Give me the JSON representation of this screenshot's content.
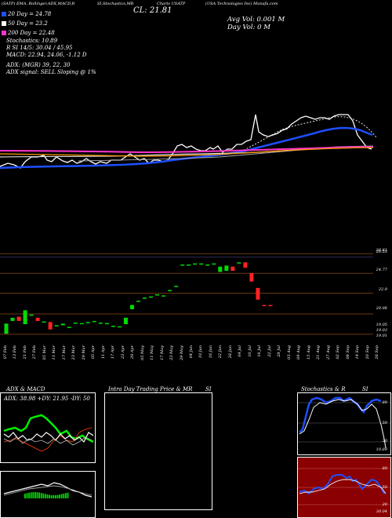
{
  "header": {
    "top_left": "(SATP) EMA, Bollinger,ADX,MACD,R",
    "top_mid": "SI,Stochastics,MR",
    "close_value": "CL: 21.81",
    "top_chart": "Charts USATP",
    "company": "(USA Technologies Inc) Munafa.com",
    "avg_vol": "Avg Vol: 0.001 M",
    "day_vol": "Day Vol: 0    M"
  },
  "legend": [
    {
      "label": "20 Day = 24.78",
      "color": "#1f4fff"
    },
    {
      "label": "50 Day = 23.2",
      "color": "#ffffff"
    },
    {
      "label": "200 Day = 22.48",
      "color": "#ff33cc"
    }
  ],
  "indicators": {
    "stochastics": "Stochastics: 10.89",
    "rsi": "R        SI 14/5: 30.04  / 45.95",
    "macd": "MACD: 22.94, 24.06, -1.12  D",
    "adx": "ADX:                        (MGR) 39, 22, 30",
    "signal": "ADX  signal: SELL  Sloping @ 1%"
  },
  "price_axis": [
    "26.61",
    "26.53",
    "24.77",
    "22.9",
    "20.96",
    "19.05",
    "19.03",
    "19.01"
  ],
  "date_labels": [
    "07 Feb",
    "13 Feb",
    "21 Feb",
    "27 Feb",
    "05 Mar",
    "11 Mar",
    "17 Mar",
    "23 Mar",
    "29 Mar",
    "05 Apr",
    "11 Apr",
    "17 Apr",
    "23 Apr",
    "29 Apr",
    "05 May",
    "11 May",
    "17 May",
    "23 May",
    "29 May",
    "04 Jun",
    "10 Jun",
    "16 Jun",
    "22 Jun",
    "28 Jun",
    "04 Jul",
    "10 Jul",
    "16 Jul",
    "22 Jul",
    "28 Jul",
    "03 Aug",
    "09 Aug",
    "15 Aug",
    "21 Aug",
    "27 Aug",
    "02 Sep",
    "08 Sep",
    "14 Sep",
    "20 Sep",
    "26 Sep"
  ],
  "panels": {
    "adx_title": "ADX  & MACD",
    "adx_values": "ADX: 38.98  +DY: 21.95  -DY: 50",
    "intraday_title": "Intra  Day Trading Price  & MR",
    "intraday_title2": "SI",
    "stoch_title": "Stochastics & R",
    "stoch_title2": "SI",
    "stoch_axis": [
      "80",
      "50",
      "20",
      "10.89"
    ],
    "rsi_axis": [
      "80",
      "50",
      "20",
      "30.04"
    ]
  },
  "chart_data": {
    "type": "candlestick",
    "title": "",
    "xlabel": "",
    "ylabel": "",
    "ylim": [
      18.6,
      27.0
    ],
    "candles": [
      {
        "o": 19.1,
        "c": 20.05,
        "color": "green"
      },
      {
        "o": 20.3,
        "c": 20.6,
        "color": "green"
      },
      {
        "o": 20.7,
        "c": 20.3,
        "color": "red"
      },
      {
        "o": 20.0,
        "c": 21.3,
        "color": "green"
      },
      {
        "o": 20.9,
        "c": 20.9,
        "color": "green"
      },
      {
        "o": 20.6,
        "c": 20.3,
        "color": "red"
      },
      {
        "o": 20.25,
        "c": 20.25,
        "color": "green"
      },
      {
        "o": 20.2,
        "c": 19.5,
        "color": "red"
      },
      {
        "o": 19.9,
        "c": 19.9,
        "color": "green"
      },
      {
        "o": 19.9,
        "c": 20.05,
        "color": "green"
      },
      {
        "o": 19.75,
        "c": 19.75,
        "color": "green"
      },
      {
        "o": 20.15,
        "c": 20.15,
        "color": "green"
      },
      {
        "o": 20.1,
        "c": 20.1,
        "color": "green"
      },
      {
        "o": 20.2,
        "c": 20.2,
        "color": "green"
      },
      {
        "o": 20.3,
        "c": 20.3,
        "color": "green"
      },
      {
        "o": 20.15,
        "c": 20.15,
        "color": "green"
      },
      {
        "o": 20.1,
        "c": 20.05,
        "color": "green"
      },
      {
        "o": 19.85,
        "c": 19.85,
        "color": "green"
      },
      {
        "o": 19.8,
        "c": 19.8,
        "color": "green"
      },
      {
        "o": 20.0,
        "c": 20.6,
        "color": "green"
      },
      {
        "o": 21.4,
        "c": 21.8,
        "color": "green"
      },
      {
        "o": 22.2,
        "c": 22.2,
        "color": "green"
      },
      {
        "o": 22.5,
        "c": 22.5,
        "color": "green"
      },
      {
        "o": 22.6,
        "c": 22.6,
        "color": "green"
      },
      {
        "o": 22.8,
        "c": 22.8,
        "color": "green"
      },
      {
        "o": 22.7,
        "c": 22.7,
        "color": "green"
      },
      {
        "o": 23.2,
        "c": 23.2,
        "color": "green"
      },
      {
        "o": 23.6,
        "c": 23.6,
        "color": "green"
      },
      {
        "o": 25.6,
        "c": 25.6,
        "color": "green"
      },
      {
        "o": 25.6,
        "c": 25.6,
        "color": "green"
      },
      {
        "o": 25.7,
        "c": 25.7,
        "color": "green"
      },
      {
        "o": 25.7,
        "c": 25.7,
        "color": "green"
      },
      {
        "o": 25.6,
        "c": 25.6,
        "color": "green"
      },
      {
        "o": 25.7,
        "c": 25.7,
        "color": "green"
      },
      {
        "o": 24.9,
        "c": 25.4,
        "color": "green"
      },
      {
        "o": 25.0,
        "c": 25.5,
        "color": "green"
      },
      {
        "o": 25.0,
        "c": 25.4,
        "color": "red"
      },
      {
        "o": 25.8,
        "c": 25.8,
        "color": "green"
      },
      {
        "o": 25.8,
        "c": 25.3,
        "color": "red"
      },
      {
        "o": 24.8,
        "c": 24.0,
        "color": "red"
      },
      {
        "o": 23.4,
        "c": 22.3,
        "color": "red"
      },
      {
        "o": 21.8,
        "c": 21.8,
        "color": "red"
      },
      {
        "o": 21.8,
        "c": 21.8,
        "color": "red"
      }
    ],
    "moving_averages": [
      {
        "name": "20 Day",
        "color": "#1f4fff"
      },
      {
        "name": "50 Day",
        "color": "#ffffff"
      },
      {
        "name": "200 Day",
        "color": "#ff33cc"
      }
    ]
  }
}
